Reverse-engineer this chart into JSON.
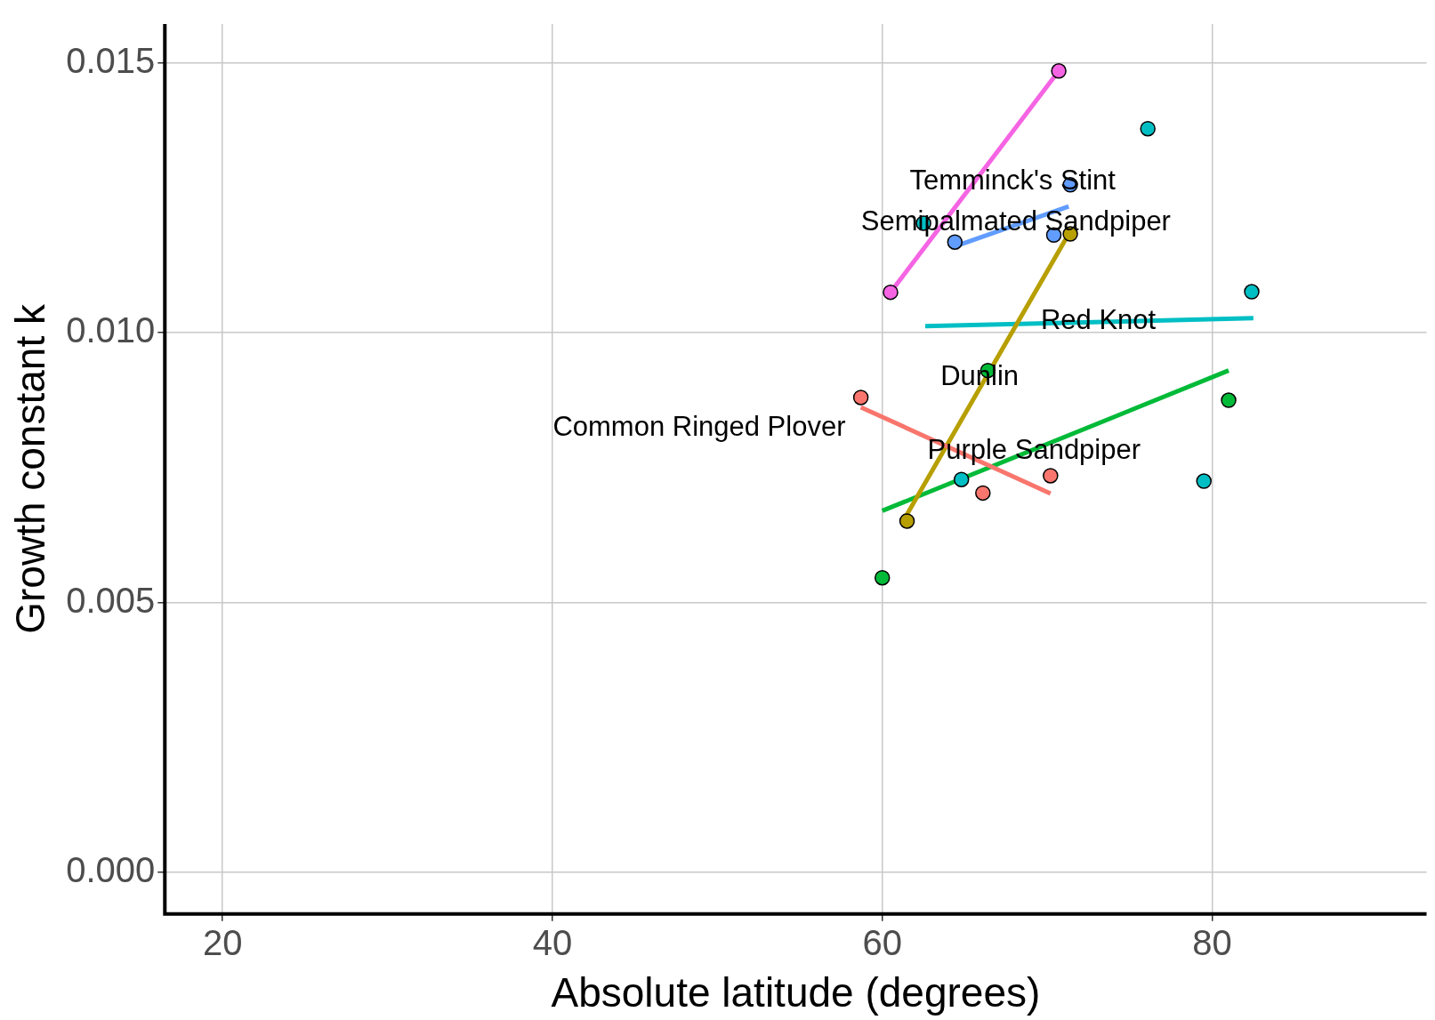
{
  "chart_data": {
    "type": "scatter",
    "xlabel": "Absolute latitude (degrees)",
    "ylabel": "Growth constant k",
    "xlim": [
      16.5,
      93
    ],
    "xticks": [
      20,
      40,
      60,
      80
    ],
    "ylim": [
      -0.00077,
      0.01572
    ],
    "yticks": [
      {
        "value": 0,
        "label": "0.000"
      },
      {
        "value": 0.005,
        "label": "0.005"
      },
      {
        "value": 0.01,
        "label": "0.010"
      },
      {
        "value": 0.015,
        "label": "0.015"
      }
    ],
    "grid": true,
    "legend": false,
    "series": [
      {
        "marker": "circle",
        "color": "#f8766d",
        "x": [
          58.7,
          66.1,
          70.2
        ],
        "values": [
          0.0088,
          0.00703,
          0.00735
        ]
      },
      {
        "type": "line",
        "color": "#f8766d",
        "x": [
          58.7,
          70.2
        ],
        "values": [
          0.00862,
          0.00702
        ]
      },
      {
        "marker": "circle",
        "color": "#b79f00",
        "x": [
          61.5,
          71.4
        ],
        "values": [
          0.00651,
          0.01183
        ]
      },
      {
        "type": "line",
        "color": "#b79f00",
        "x": [
          61.3,
          71.4
        ],
        "values": [
          0.00653,
          0.01188
        ]
      },
      {
        "marker": "circle",
        "color": "#00ba38",
        "x": [
          60.0,
          66.4,
          81.0
        ],
        "values": [
          0.00546,
          0.0093,
          0.00875
        ]
      },
      {
        "type": "line",
        "color": "#00ba38",
        "x": [
          60.0,
          81.0
        ],
        "values": [
          0.0067,
          0.0093
        ]
      },
      {
        "marker": "circle",
        "color": "#00bfc4",
        "x": [
          62.5,
          64.8,
          76.1,
          79.5,
          82.4
        ],
        "values": [
          0.01203,
          0.00728,
          0.01378,
          0.00725,
          0.01076
        ]
      },
      {
        "type": "line",
        "color": "#00bfc4",
        "x": [
          62.6,
          82.5
        ],
        "values": [
          0.01012,
          0.01027
        ]
      },
      {
        "marker": "circle",
        "color": "#619cff",
        "x": [
          64.4,
          70.4,
          71.4
        ],
        "values": [
          0.01168,
          0.01181,
          0.01274
        ]
      },
      {
        "type": "line",
        "color": "#619cff",
        "x": [
          64.4,
          71.3
        ],
        "values": [
          0.0116,
          0.01234
        ]
      },
      {
        "marker": "circle",
        "color": "#f564e3",
        "x": [
          60.5,
          70.7
        ],
        "values": [
          0.01075,
          0.01485
        ]
      },
      {
        "type": "line",
        "color": "#f564e3",
        "x": [
          60.5,
          70.7
        ],
        "values": [
          0.01075,
          0.01485
        ]
      }
    ],
    "annotations": [
      "Temminck's Stint",
      {
        "text": "Semipalmated Sandpiper",
        "x": 68.1,
        "y": 0.01204
      },
      {
        "text": "Red Knot",
        "x": 73.1,
        "y": 0.01021
      },
      {
        "text": "Dunlin",
        "x": 65.9,
        "y": 0.00917
      },
      "Common Ringed Plover",
      {
        "text": "Purple Sandpiper",
        "x": 69.2,
        "y": 0.0078
      }
    ]
  }
}
